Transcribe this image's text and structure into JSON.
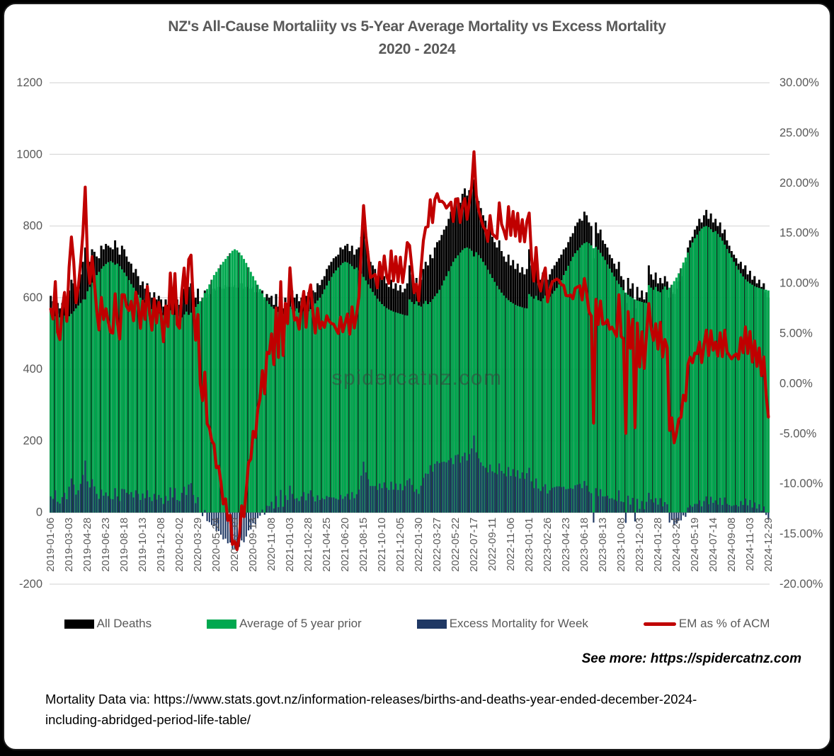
{
  "title": {
    "line1": "NZ's All-Cause Mortaliity vs 5-Year Average Mortality vs Excess Mortality",
    "line2": "2020 - 2024"
  },
  "watermark": "spidercatnz.com",
  "see_more": "See more: https://spidercatnz.com",
  "source": {
    "line1": "Mortality Data via: https://www.stats.govt.nz/information-releases/births-and-deaths-year-ended-december-2024-",
    "line2": "including-abridged-period-life-table/"
  },
  "legend": {
    "items": [
      {
        "label": "All Deaths",
        "color": "#000000",
        "type": "bar"
      },
      {
        "label": "Average of 5 year prior",
        "color": "#00A84F",
        "type": "bar"
      },
      {
        "label": "Excess Mortality for Week",
        "color": "#1F3864",
        "type": "bar"
      },
      {
        "label": "EM as % of ACM",
        "color": "#C00000",
        "type": "line"
      }
    ]
  },
  "chart_data": {
    "type": "combo_bar_line",
    "title": "NZ's All-Cause Mortaliity vs 5-Year Average Mortality vs Excess Mortality 2020 - 2024",
    "frequency": "weekly",
    "x_start": "2019-01-06",
    "x_end": "2024-12-29",
    "n_points": 313,
    "grid": "horizontal",
    "left_axis": {
      "min": -200,
      "max": 1200,
      "ticks": [
        1200,
        1000,
        800,
        600,
        400,
        200,
        0,
        -200
      ]
    },
    "right_axis": {
      "min_pct": -20,
      "max_pct": 30,
      "ticks": [
        "30.00%",
        "25.00%",
        "20.00%",
        "15.00%",
        "10.00%",
        "5.00%",
        "0.00%",
        "-5.00%",
        "-10.00%",
        "-15.00%",
        "-20.00%"
      ]
    },
    "x_tick_labels": [
      "2019-01-06",
      "2019-03-03",
      "2019-04-28",
      "2019-06-23",
      "2019-08-18",
      "2019-10-13",
      "2019-12-08",
      "2020-02-02",
      "2020-03-29",
      "2020-05-24",
      "2020-07-19",
      "2020-09-13",
      "2020-11-08",
      "2021-01-03",
      "2021-02-28",
      "2021-04-25",
      "2021-06-20",
      "2021-08-15",
      "2021-10-10",
      "2021-12-05",
      "2022-01-30",
      "2022-03-27",
      "2022-05-22",
      "2022-07-17",
      "2022-09-11",
      "2022-11-06",
      "2023-01-01",
      "2023-02-26",
      "2023-04-23",
      "2023-06-18",
      "2023-08-13",
      "2023-10-08",
      "2023-12-03",
      "2024-01-28",
      "2024-03-24",
      "2024-05-19",
      "2024-07-14",
      "2024-09-08",
      "2024-11-03",
      "2024-12-29"
    ],
    "year_order": [
      "2019",
      "2020",
      "2021",
      "2022",
      "2023",
      "2024"
    ],
    "series": {
      "all_deaths": {
        "label": "All Deaths",
        "color": "#000000",
        "axis": "left",
        "values_by_year": {
          "2019": [
            605,
            590,
            610,
            585,
            570,
            585,
            605,
            595,
            620,
            650,
            640,
            620,
            640,
            665,
            700,
            740,
            705,
            700,
            735,
            728,
            715,
            710,
            745,
            735,
            750,
            745,
            740,
            735,
            760,
            740,
            720,
            745,
            735,
            715,
            700,
            695,
            670,
            680,
            660,
            635,
            645,
            625,
            640,
            615,
            600,
            615,
            595,
            605,
            595,
            575,
            595,
            580
          ],
          "2020": [
            635,
            600,
            620,
            595,
            580,
            600,
            625,
            610,
            630,
            640,
            615,
            600,
            625,
            590,
            590,
            620,
            600,
            610,
            615,
            625,
            620,
            630,
            630,
            625,
            635,
            630,
            640,
            630,
            635,
            628,
            630,
            640,
            625,
            630,
            635,
            625,
            630,
            615,
            620,
            615,
            620,
            595,
            610,
            600,
            605,
            580,
            610,
            575,
            620,
            570,
            600,
            585
          ],
          "2021": [
            650,
            620,
            600,
            610,
            590,
            600,
            620,
            605,
            615,
            630,
            620,
            615,
            640,
            635,
            650,
            660,
            680,
            690,
            700,
            710,
            715,
            720,
            740,
            735,
            745,
            750,
            730,
            745,
            720,
            735,
            740,
            770,
            800,
            760,
            730,
            700,
            690,
            680,
            660,
            670,
            650,
            660,
            640,
            630,
            650,
            625,
            640,
            620,
            635,
            615,
            625,
            640
          ],
          "2022": [
            690,
            665,
            640,
            655,
            630,
            650,
            680,
            700,
            690,
            720,
            710,
            740,
            755,
            760,
            775,
            790,
            800,
            820,
            840,
            835,
            870,
            880,
            865,
            890,
            905,
            885,
            900,
            910,
            930,
            895,
            870,
            850,
            830,
            815,
            790,
            800,
            770,
            755,
            740,
            760,
            730,
            715,
            700,
            720,
            690,
            705,
            680,
            695,
            670,
            685,
            665,
            680
          ],
          "2023": [
            735,
            690,
            665,
            700,
            660,
            650,
            670,
            685,
            650,
            665,
            680,
            690,
            700,
            710,
            720,
            735,
            740,
            755,
            770,
            780,
            800,
            810,
            820,
            815,
            840,
            830,
            810,
            800,
            710,
            810,
            780,
            790,
            760,
            750,
            740,
            720,
            710,
            695,
            680,
            700,
            660,
            650,
            585,
            655,
            625,
            640,
            570,
            630,
            600,
            620,
            595,
            615
          ],
          "2024": [
            690,
            665,
            650,
            670,
            640,
            655,
            640,
            660,
            645,
            600,
            615,
            610,
            625,
            645,
            660,
            690,
            700,
            740,
            760,
            770,
            790,
            800,
            820,
            810,
            830,
            845,
            820,
            835,
            810,
            820,
            800,
            810,
            780,
            790,
            760,
            745,
            730,
            720,
            710,
            695,
            700,
            680,
            690,
            665,
            675,
            650,
            660,
            640,
            650,
            630,
            640,
            615,
            600
          ]
        }
      },
      "avg_5yr": {
        "label": "Average of 5 year prior",
        "color": "#00A84F",
        "axis": "left",
        "values_by_year": {
          "2019": [
            560,
            552,
            548,
            555,
            545,
            542,
            550,
            558,
            548,
            555,
            562,
            570,
            578,
            585,
            595,
            595,
            618,
            630,
            642,
            655,
            663,
            672,
            681,
            688,
            694,
            699,
            702,
            698,
            692,
            695,
            688,
            679,
            670,
            660,
            649,
            638,
            628,
            618,
            608,
            600,
            592,
            585,
            578,
            572,
            568,
            563,
            559,
            556,
            554,
            551,
            549,
            547
          ],
          "2020": [
            565,
            558,
            552,
            560,
            548,
            545,
            553,
            561,
            552,
            558,
            566,
            574,
            582,
            590,
            600,
            613,
            624,
            637,
            650,
            663,
            672,
            682,
            692,
            700,
            708,
            716,
            724,
            731,
            735,
            732,
            726,
            718,
            708,
            697,
            685,
            672,
            660,
            648,
            636,
            624,
            612,
            601,
            591,
            582,
            575,
            569,
            564,
            560,
            557,
            554,
            552,
            550
          ],
          "2021": [
            575,
            568,
            562,
            570,
            558,
            555,
            563,
            571,
            562,
            568,
            576,
            584,
            592,
            600,
            610,
            623,
            634,
            647,
            658,
            668,
            676,
            684,
            691,
            697,
            700,
            698,
            694,
            688,
            680,
            684,
            676,
            667,
            658,
            648,
            637,
            626,
            616,
            606,
            597,
            589,
            582,
            576,
            571,
            567,
            564,
            561,
            559,
            557,
            555,
            553,
            551,
            550
          ],
          "2022": [
            595,
            588,
            582,
            590,
            578,
            575,
            583,
            591,
            582,
            588,
            596,
            604,
            612,
            622,
            634,
            648,
            660,
            674,
            688,
            700,
            710,
            718,
            726,
            733,
            738,
            740,
            737,
            731,
            715,
            727,
            719,
            710,
            700,
            690,
            678,
            666,
            655,
            644,
            633,
            623,
            614,
            606,
            599,
            593,
            588,
            584,
            580,
            577,
            575,
            573,
            571,
            570
          ],
          "2023": [
            610,
            603,
            597,
            605,
            593,
            590,
            598,
            606,
            597,
            603,
            611,
            619,
            627,
            637,
            649,
            663,
            675,
            689,
            702,
            714,
            724,
            732,
            740,
            747,
            752,
            755,
            752,
            746,
            738,
            742,
            734,
            725,
            715,
            705,
            693,
            681,
            670,
            659,
            648,
            638,
            629,
            621,
            614,
            608,
            603,
            599,
            595,
            592,
            590,
            588,
            586,
            585
          ],
          "2024": [
            635,
            628,
            622,
            630,
            618,
            615,
            623,
            631,
            622,
            628,
            636,
            646,
            656,
            668,
            682,
            698,
            712,
            726,
            740,
            754,
            766,
            776,
            786,
            793,
            798,
            800,
            797,
            791,
            783,
            786,
            778,
            769,
            759,
            748,
            736,
            724,
            712,
            700,
            689,
            678,
            668,
            659,
            651,
            645,
            640,
            636,
            632,
            629,
            627,
            625,
            623,
            622,
            620
          ]
        }
      },
      "excess": {
        "label": "Excess Mortality for Week",
        "color": "#1F3864",
        "axis": "left",
        "derived": "all_deaths - avg_5yr"
      },
      "em_pct": {
        "label": "EM as % of ACM",
        "color": "#C00000",
        "axis": "right",
        "derived": "(all_deaths - avg_5yr) / all_deaths * 100"
      }
    }
  }
}
